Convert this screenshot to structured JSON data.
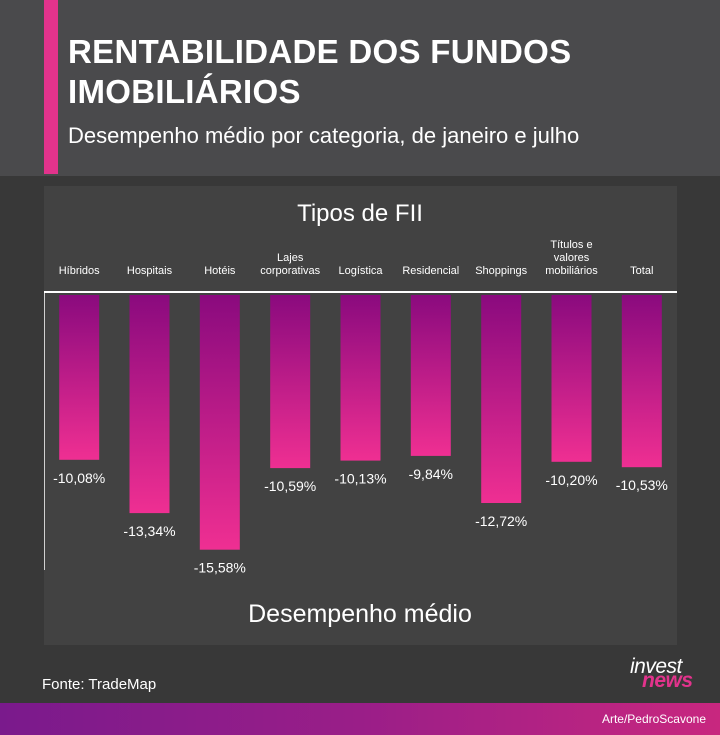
{
  "header": {
    "title": "RENTABILIDADE DOS FUNDOS IMOBILIÁRIOS",
    "subtitle": "Desempenho médio por categoria, de janeiro e julho"
  },
  "colors": {
    "accent": "#e2338c",
    "bar_top": "#8a0a7e",
    "bar_bottom": "#ef2f92"
  },
  "chart_data": {
    "type": "bar",
    "title": "Tipos de FII",
    "xlabel": "Desempenho médio",
    "ylabel": "",
    "categories": [
      [
        "Híbridos"
      ],
      [
        "Hospitais"
      ],
      [
        "Hotéis"
      ],
      [
        "Lajes",
        "corporativas"
      ],
      [
        "Logística"
      ],
      [
        "Residencial"
      ],
      [
        "Shoppings"
      ],
      [
        "Títulos e",
        "valores",
        "mobiliários"
      ],
      [
        "Total"
      ]
    ],
    "values": [
      -10.08,
      -13.34,
      -15.58,
      -10.59,
      -10.13,
      -9.84,
      -12.72,
      -10.2,
      -10.53
    ],
    "value_labels": [
      "-10,08%",
      "-13,34%",
      "-15,58%",
      "-10,59%",
      "-10,13%",
      "-9,84%",
      "-12,72%",
      "-10,20%",
      "-10,53%"
    ],
    "ylim": [
      -16,
      0
    ],
    "grid": false,
    "legend": "none"
  },
  "footer": {
    "source": "Fonte: TradeMap",
    "logo_top": "invest",
    "logo_bottom": "news",
    "credit": "Arte/PedroScavone"
  }
}
